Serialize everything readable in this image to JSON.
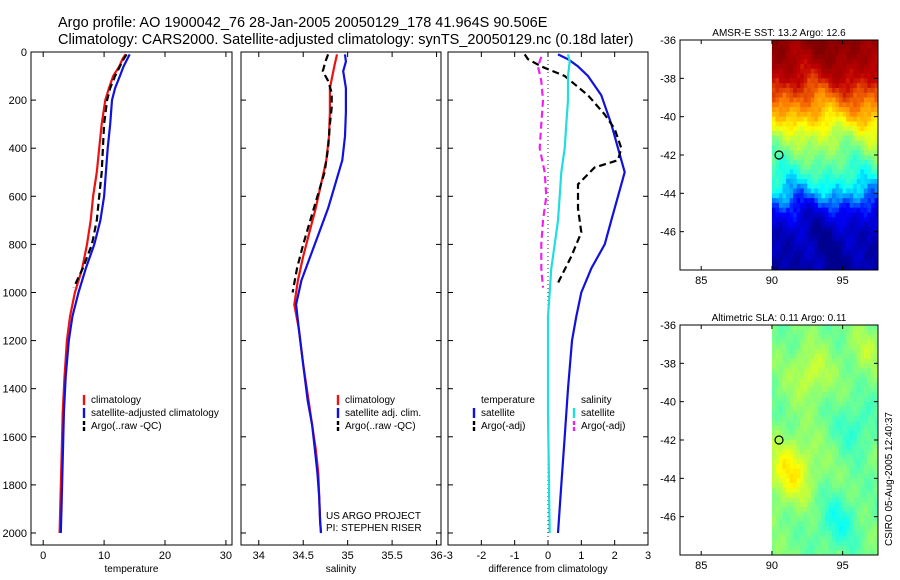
{
  "figure": {
    "title_line1": "Argo profile: AO 1900042_76 28-Jan-2005 20050129_178 41.964S 90.506E",
    "title_line2": "Climatology: CARS2000. Satellite-adjusted climatology: synTS_20050129.nc (0.18d later)",
    "credit_line1": "US ARGO PROJECT",
    "credit_line2": "PI: STEPHEN RISER",
    "stamp": "CSIRO 05-Aug-2005 12:40:37"
  },
  "colors": {
    "climatology": "#ee1111",
    "satellite": "#1111dd",
    "argo": "#000000",
    "temp_diff_satellite": "#1111dd",
    "sal_diff_satellite": "#22dddd",
    "sal_diff_argo": "#ee22ee"
  },
  "chart_data": [
    {
      "id": "temperature",
      "type": "line",
      "xlabel": "temperature",
      "ylabel": "",
      "xlim": [
        -2,
        31
      ],
      "ylim": [
        2050,
        0
      ],
      "xticks": [
        0,
        10,
        20,
        30
      ],
      "xtick_labels": [
        "0",
        "10",
        "20",
        "30"
      ],
      "yticks": [
        0,
        200,
        400,
        600,
        800,
        1000,
        1200,
        1400,
        1600,
        1800,
        2000
      ],
      "ytick_labels": [
        "0",
        "200",
        "400",
        "600",
        "800",
        "1000",
        "1200",
        "1400",
        "1600",
        "1800",
        "2000"
      ],
      "legend": {
        "position": "lower-right",
        "entries": [
          "climatology",
          "satellite-adjusted climatology",
          "Argo(..raw -QC)"
        ]
      },
      "series": [
        {
          "name": "climatology",
          "style": "solid",
          "color_key": "climatology",
          "points": [
            [
              13.5,
              10
            ],
            [
              13,
              30
            ],
            [
              12.5,
              60
            ],
            [
              11.5,
              100
            ],
            [
              10.8,
              150
            ],
            [
              10.2,
              200
            ],
            [
              9.6,
              300
            ],
            [
              9.2,
              400
            ],
            [
              8.8,
              500
            ],
            [
              8.2,
              600
            ],
            [
              7.8,
              700
            ],
            [
              7.2,
              800
            ],
            [
              6.4,
              900
            ],
            [
              5.2,
              1000
            ],
            [
              4.4,
              1100
            ],
            [
              3.9,
              1200
            ],
            [
              3.5,
              1350
            ],
            [
              3.2,
              1500
            ],
            [
              3,
              1700
            ],
            [
              2.8,
              1900
            ],
            [
              2.7,
              2000
            ]
          ]
        },
        {
          "name": "satellite-adjusted climatology",
          "style": "solid",
          "color_key": "satellite",
          "points": [
            [
              14.2,
              10
            ],
            [
              13.8,
              30
            ],
            [
              13.2,
              60
            ],
            [
              12.6,
              100
            ],
            [
              11.8,
              150
            ],
            [
              11.3,
              200
            ],
            [
              11,
              300
            ],
            [
              10.6,
              400
            ],
            [
              10.3,
              500
            ],
            [
              10,
              600
            ],
            [
              9.4,
              700
            ],
            [
              8.4,
              800
            ],
            [
              7,
              900
            ],
            [
              5.8,
              1000
            ],
            [
              4.8,
              1100
            ],
            [
              4.2,
              1200
            ],
            [
              3.7,
              1350
            ],
            [
              3.4,
              1500
            ],
            [
              3.2,
              1700
            ],
            [
              3,
              1900
            ],
            [
              2.9,
              2000
            ]
          ]
        },
        {
          "name": "Argo(..raw -QC)",
          "style": "dashed",
          "color_key": "argo",
          "points": [
            [
              13.7,
              10
            ],
            [
              13.2,
              30
            ],
            [
              12.6,
              60
            ],
            [
              11.8,
              100
            ],
            [
              11,
              150
            ],
            [
              10.5,
              200
            ],
            [
              10,
              300
            ],
            [
              9.8,
              400
            ],
            [
              9.6,
              500
            ],
            [
              9.2,
              600
            ],
            [
              8.8,
              700
            ],
            [
              8,
              800
            ],
            [
              6.5,
              900
            ],
            [
              5,
              980
            ]
          ]
        }
      ]
    },
    {
      "id": "salinity",
      "type": "line",
      "xlabel": "salinity",
      "ylabel": "",
      "xlim": [
        33.8,
        36.05
      ],
      "ylim": [
        2050,
        0
      ],
      "xticks": [
        34,
        34.5,
        35,
        35.5,
        36
      ],
      "xtick_labels": [
        "34",
        "34.5",
        "35",
        "35.5",
        "36"
      ],
      "legend": {
        "position": "lower-right",
        "entries": [
          "climatology",
          "satellite adj. clim.",
          "Argo(..raw -QC)"
        ]
      },
      "series": [
        {
          "name": "climatology",
          "style": "solid",
          "color_key": "climatology",
          "points": [
            [
              34.88,
              10
            ],
            [
              34.85,
              60
            ],
            [
              34.8,
              150
            ],
            [
              34.8,
              250
            ],
            [
              34.79,
              350
            ],
            [
              34.76,
              450
            ],
            [
              34.7,
              550
            ],
            [
              34.64,
              650
            ],
            [
              34.57,
              750
            ],
            [
              34.5,
              850
            ],
            [
              34.44,
              950
            ],
            [
              34.4,
              1050
            ],
            [
              34.45,
              1150
            ],
            [
              34.5,
              1300
            ],
            [
              34.56,
              1450
            ],
            [
              34.6,
              1550
            ],
            [
              34.64,
              1650
            ],
            [
              34.67,
              1750
            ],
            [
              34.68,
              1850
            ],
            [
              34.69,
              1950
            ],
            [
              34.7,
              2000
            ]
          ]
        },
        {
          "name": "satellite adj. clim.",
          "style": "solid",
          "color_key": "satellite",
          "points": [
            [
              34.97,
              10
            ],
            [
              34.98,
              40
            ],
            [
              34.95,
              80
            ],
            [
              34.98,
              150
            ],
            [
              34.98,
              250
            ],
            [
              34.97,
              350
            ],
            [
              34.94,
              450
            ],
            [
              34.86,
              550
            ],
            [
              34.78,
              650
            ],
            [
              34.68,
              750
            ],
            [
              34.58,
              850
            ],
            [
              34.48,
              950
            ],
            [
              34.42,
              1050
            ],
            [
              34.45,
              1150
            ],
            [
              34.5,
              1300
            ],
            [
              34.55,
              1450
            ],
            [
              34.6,
              1550
            ],
            [
              34.63,
              1650
            ],
            [
              34.66,
              1750
            ],
            [
              34.68,
              1850
            ],
            [
              34.69,
              1950
            ],
            [
              34.7,
              2000
            ]
          ]
        },
        {
          "name": "Argo(..raw -QC)",
          "style": "dashed",
          "color_key": "argo",
          "points": [
            [
              34.78,
              10
            ],
            [
              34.75,
              40
            ],
            [
              34.72,
              80
            ],
            [
              34.78,
              120
            ],
            [
              34.82,
              170
            ],
            [
              34.82,
              230
            ],
            [
              34.8,
              300
            ],
            [
              34.78,
              400
            ],
            [
              34.74,
              500
            ],
            [
              34.66,
              600
            ],
            [
              34.58,
              700
            ],
            [
              34.5,
              800
            ],
            [
              34.43,
              900
            ],
            [
              34.38,
              1000
            ]
          ]
        }
      ]
    },
    {
      "id": "difference",
      "type": "line",
      "xlabel": "difference from climatology",
      "ylabel": "",
      "xlim": [
        -3,
        3
      ],
      "ylim": [
        2050,
        0
      ],
      "xticks": [
        -3,
        -2,
        -1,
        0,
        1,
        2,
        3
      ],
      "xtick_labels": [
        "-3",
        "-2",
        "-1",
        "0",
        "1",
        "2",
        "3"
      ],
      "zero_line": "dotted",
      "legend": {
        "position": "lower-center",
        "temperature_header": "temperature",
        "salinity_header": "salinity",
        "entries": [
          "satellite",
          "Argo(-adj)",
          "satellite",
          "Argo(-adj)"
        ]
      },
      "series": [
        {
          "name": "temperature satellite",
          "style": "solid",
          "color_key": "temp_diff_satellite",
          "points": [
            [
              0.3,
              10
            ],
            [
              0.6,
              30
            ],
            [
              0.9,
              60
            ],
            [
              1.2,
              100
            ],
            [
              1.6,
              180
            ],
            [
              1.9,
              300
            ],
            [
              2.1,
              400
            ],
            [
              2.3,
              500
            ],
            [
              2.1,
              600
            ],
            [
              1.9,
              700
            ],
            [
              1.7,
              800
            ],
            [
              1.3,
              900
            ],
            [
              1,
              1000
            ],
            [
              0.85,
              1100
            ],
            [
              0.72,
              1200
            ],
            [
              0.6,
              1400
            ],
            [
              0.5,
              1600
            ],
            [
              0.4,
              1800
            ],
            [
              0.3,
              2000
            ]
          ]
        },
        {
          "name": "temperature Argo(-adj)",
          "style": "dashed",
          "color_key": "argo",
          "points": [
            [
              -0.7,
              10
            ],
            [
              -0.6,
              30
            ],
            [
              -0.2,
              60
            ],
            [
              0.5,
              100
            ],
            [
              1.2,
              180
            ],
            [
              1.7,
              260
            ],
            [
              2,
              320
            ],
            [
              2.2,
              400
            ],
            [
              2.1,
              450
            ],
            [
              1.4,
              480
            ],
            [
              0.9,
              550
            ],
            [
              0.9,
              650
            ],
            [
              1,
              750
            ],
            [
              0.7,
              850
            ],
            [
              0.3,
              960
            ]
          ]
        },
        {
          "name": "salinity satellite",
          "style": "solid",
          "color_key": "sal_diff_satellite",
          "points": [
            [
              0.6,
              10
            ],
            [
              0.65,
              40
            ],
            [
              0.6,
              100
            ],
            [
              0.6,
              200
            ],
            [
              0.55,
              300
            ],
            [
              0.5,
              400
            ],
            [
              0.4,
              500
            ],
            [
              0.35,
              600
            ],
            [
              0.3,
              700
            ],
            [
              0.2,
              800
            ],
            [
              0.1,
              900
            ],
            [
              0.05,
              1000
            ],
            [
              0,
              1100
            ],
            [
              0,
              1300
            ],
            [
              0,
              1500
            ],
            [
              0.02,
              1700
            ],
            [
              0.04,
              1900
            ],
            [
              0.05,
              2000
            ]
          ]
        },
        {
          "name": "salinity Argo(-adj)",
          "style": "dashed",
          "color_key": "sal_diff_argo",
          "points": [
            [
              -0.2,
              20
            ],
            [
              -0.3,
              60
            ],
            [
              -0.2,
              120
            ],
            [
              -0.15,
              200
            ],
            [
              -0.2,
              300
            ],
            [
              -0.25,
              400
            ],
            [
              -0.1,
              500
            ],
            [
              -0.05,
              600
            ],
            [
              -0.15,
              700
            ],
            [
              -0.2,
              800
            ],
            [
              -0.2,
              900
            ],
            [
              -0.15,
              980
            ]
          ]
        }
      ]
    },
    {
      "id": "sst_map",
      "type": "heatmap",
      "title": "AMSR-E SST: 13.2 Argo: 12.6",
      "xlim": [
        83.5,
        97.5
      ],
      "ylim": [
        -48,
        -36
      ],
      "xticks": [
        85,
        90,
        95
      ],
      "xtick_labels": [
        "85",
        "90",
        "95"
      ],
      "yticks": [
        -36,
        -38,
        -40,
        -42,
        -44,
        -46
      ],
      "ytick_labels": [
        "-36",
        "-38",
        "-40",
        "-42",
        "-44",
        "-46"
      ],
      "data_extent_lon": [
        90,
        97.5
      ],
      "colormap": [
        "#00008f",
        "#0000ff",
        "#00ffff",
        "#80ff80",
        "#ffff00",
        "#ff8000",
        "#c00000",
        "#800000"
      ],
      "marker": {
        "lon": 90.5,
        "lat": -42
      },
      "zonal_levels": [
        {
          "lat": -36,
          "level": 0.98
        },
        {
          "lat": -37,
          "level": 0.93
        },
        {
          "lat": -38,
          "level": 0.85
        },
        {
          "lat": -39,
          "level": 0.74
        },
        {
          "lat": -40,
          "level": 0.63
        },
        {
          "lat": -41,
          "level": 0.5
        },
        {
          "lat": -42,
          "level": 0.42
        },
        {
          "lat": -43,
          "level": 0.34
        },
        {
          "lat": -44,
          "level": 0.24
        },
        {
          "lat": -45,
          "level": 0.12
        },
        {
          "lat": -46,
          "level": 0.05
        },
        {
          "lat": -48,
          "level": 0.02
        }
      ]
    },
    {
      "id": "sla_map",
      "type": "heatmap",
      "title": "Altimetric SLA: 0.11 Argo: 0.11",
      "xlim": [
        83.5,
        97.5
      ],
      "ylim": [
        -48,
        -36
      ],
      "xticks": [
        85,
        90,
        95
      ],
      "xtick_labels": [
        "85",
        "90",
        "95"
      ],
      "yticks": [
        -36,
        -38,
        -40,
        -42,
        -44,
        -46
      ],
      "ytick_labels": [
        "-36",
        "-38",
        "-40",
        "-42",
        "-44",
        "-46"
      ],
      "data_extent_lon": [
        90,
        97.5
      ],
      "colormap": [
        "#00008f",
        "#0000ff",
        "#00ffff",
        "#80ff80",
        "#ffff00",
        "#ff8000",
        "#c00000",
        "#800000"
      ],
      "marker": {
        "lon": 90.5,
        "lat": -42
      },
      "base_level": 0.42,
      "anomalies": [
        {
          "lon": 91.2,
          "lat": -43.5,
          "amp": 0.16,
          "r": 1.6
        },
        {
          "lon": 92.6,
          "lat": -38.4,
          "amp": 0.1,
          "r": 1.3
        },
        {
          "lon": 95.8,
          "lat": -41.2,
          "amp": -0.08,
          "r": 1.4
        },
        {
          "lon": 94.5,
          "lat": -46.2,
          "amp": -0.1,
          "r": 1.5
        },
        {
          "lon": 96.5,
          "lat": -37.2,
          "amp": 0.06,
          "r": 1.2
        }
      ]
    }
  ]
}
